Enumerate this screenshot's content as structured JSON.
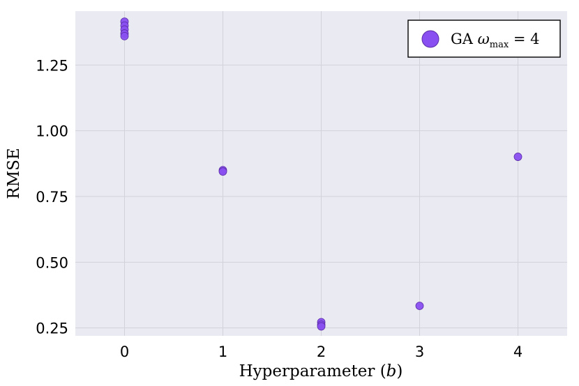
{
  "chart_data": {
    "type": "scatter",
    "xlabel": "Hyperparameter (b)",
    "ylabel": "RMSE",
    "xlim": [
      -0.5,
      4.5
    ],
    "ylim": [
      0.22,
      1.455
    ],
    "x_ticks": [
      0,
      1,
      2,
      3,
      4
    ],
    "x_tick_labels": [
      "0",
      "1",
      "2",
      "3",
      "4"
    ],
    "y_ticks": [
      0.25,
      0.5,
      0.75,
      1.0,
      1.25
    ],
    "y_tick_labels": [
      "0.25",
      "0.50",
      "0.75",
      "1.00",
      "1.25"
    ],
    "grid": true,
    "legend_position": "top-right",
    "series": [
      {
        "name": "GA  ωmax = 4",
        "color": "#8a4ff0",
        "points": [
          {
            "x": 0,
            "y": 1.415
          },
          {
            "x": 0,
            "y": 1.4
          },
          {
            "x": 0,
            "y": 1.385
          },
          {
            "x": 0,
            "y": 1.37
          },
          {
            "x": 0,
            "y": 1.36
          },
          {
            "x": 1,
            "y": 0.85
          },
          {
            "x": 1,
            "y": 0.845
          },
          {
            "x": 2,
            "y": 0.272
          },
          {
            "x": 2,
            "y": 0.262
          },
          {
            "x": 2,
            "y": 0.256
          },
          {
            "x": 3,
            "y": 0.334
          },
          {
            "x": 4,
            "y": 0.901
          }
        ]
      }
    ]
  }
}
